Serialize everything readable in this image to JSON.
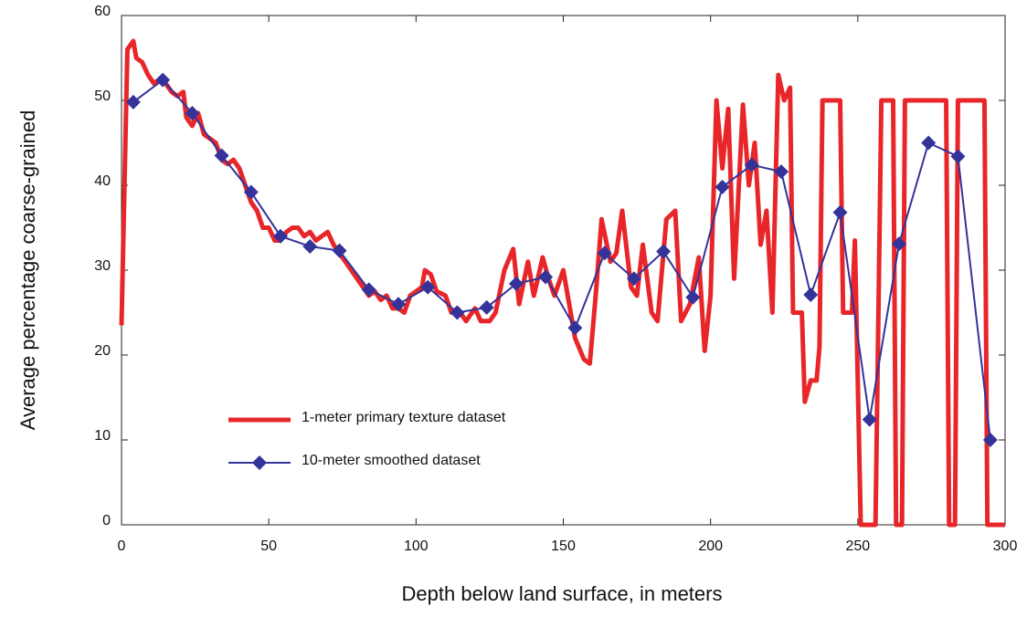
{
  "chart_data": {
    "type": "line",
    "xlabel": "Depth below land surface, in meters",
    "ylabel": "Average percentage coarse-grained",
    "xlim": [
      0,
      300
    ],
    "xticks": [
      0,
      50,
      100,
      150,
      200,
      250,
      300
    ],
    "ylim": [
      0,
      60
    ],
    "yticks": [
      0,
      10,
      20,
      30,
      40,
      50,
      60
    ],
    "legend": "lower left",
    "series": [
      {
        "name": "1-meter primary texture dataset",
        "color": "#e8262a",
        "marker": "none",
        "x": [
          0,
          1,
          2,
          3,
          4,
          5,
          7,
          9,
          11,
          13,
          15,
          17,
          19,
          21,
          22,
          24,
          26,
          28,
          30,
          32,
          34,
          36,
          38,
          40,
          42,
          44,
          46,
          48,
          50,
          52,
          54,
          56,
          58,
          60,
          62,
          64,
          66,
          68,
          70,
          72,
          74,
          76,
          78,
          80,
          82,
          84,
          86,
          88,
          90,
          92,
          94,
          96,
          98,
          100,
          102,
          103,
          105,
          107,
          110,
          112,
          114,
          117,
          119,
          120,
          122,
          125,
          127,
          130,
          133,
          135,
          138,
          140,
          143,
          145,
          147,
          150,
          152,
          154,
          157,
          159,
          161,
          163,
          166,
          168,
          170,
          173,
          175,
          177,
          180,
          182,
          185,
          188,
          190,
          193,
          196,
          198,
          200,
          202,
          204,
          206,
          208,
          211,
          213,
          215,
          217,
          219,
          221,
          223,
          225,
          227,
          228,
          231,
          232,
          234,
          236,
          237,
          238,
          244,
          245,
          248,
          249,
          251,
          256,
          258,
          262,
          263,
          265,
          266,
          280,
          281,
          283,
          284,
          293,
          294,
          300
        ],
        "values": [
          23.5,
          40,
          56,
          56.5,
          57,
          55,
          54.5,
          53,
          52,
          52.5,
          52,
          51,
          50.5,
          51,
          48,
          47,
          48.5,
          46,
          45.5,
          45,
          43,
          42.5,
          43,
          42,
          40,
          38,
          37,
          35,
          35,
          33.5,
          33.5,
          34.5,
          35,
          35,
          34,
          34.5,
          33.5,
          34,
          34.5,
          33,
          32,
          31,
          30,
          29,
          28,
          27,
          27.5,
          26.5,
          27,
          25.5,
          25.5,
          25,
          27,
          27.5,
          28,
          30,
          29.5,
          27.5,
          27,
          25,
          25.5,
          24,
          25,
          25.5,
          24,
          24,
          25,
          30,
          32.5,
          26,
          31,
          27,
          31.5,
          29,
          27,
          30,
          26,
          22,
          19.5,
          19,
          27,
          36,
          31,
          32,
          37,
          28,
          27,
          33,
          25,
          24,
          36,
          37,
          24,
          26,
          31.5,
          20.5,
          27,
          50,
          42,
          49,
          29,
          49.5,
          40,
          45,
          33,
          37,
          25,
          53,
          50,
          51.5,
          25,
          25,
          14.5,
          17,
          17,
          21,
          50,
          50,
          25,
          25,
          33.5,
          0,
          0,
          50,
          50,
          0,
          0,
          50,
          50,
          0,
          0,
          50,
          50,
          0,
          0
        ]
      },
      {
        "name": "10-meter smoothed dataset",
        "color": "#33339a",
        "marker": "diamond",
        "x": [
          4,
          14,
          24,
          34,
          44,
          54,
          64,
          74,
          84,
          94,
          104,
          114,
          124,
          134,
          144,
          154,
          164,
          174,
          184,
          194,
          204,
          214,
          224,
          234,
          244,
          254,
          264,
          274,
          284,
          295
        ],
        "values": [
          49.8,
          52.4,
          48.5,
          43.5,
          39.2,
          34,
          32.8,
          32.3,
          27.7,
          26,
          28,
          25,
          25.6,
          28.4,
          29.2,
          23.2,
          32,
          29,
          32.2,
          26.8,
          39.8,
          42.4,
          41.6,
          27.1,
          36.8,
          12.4,
          33.1,
          45,
          43.4,
          10
        ]
      }
    ]
  }
}
